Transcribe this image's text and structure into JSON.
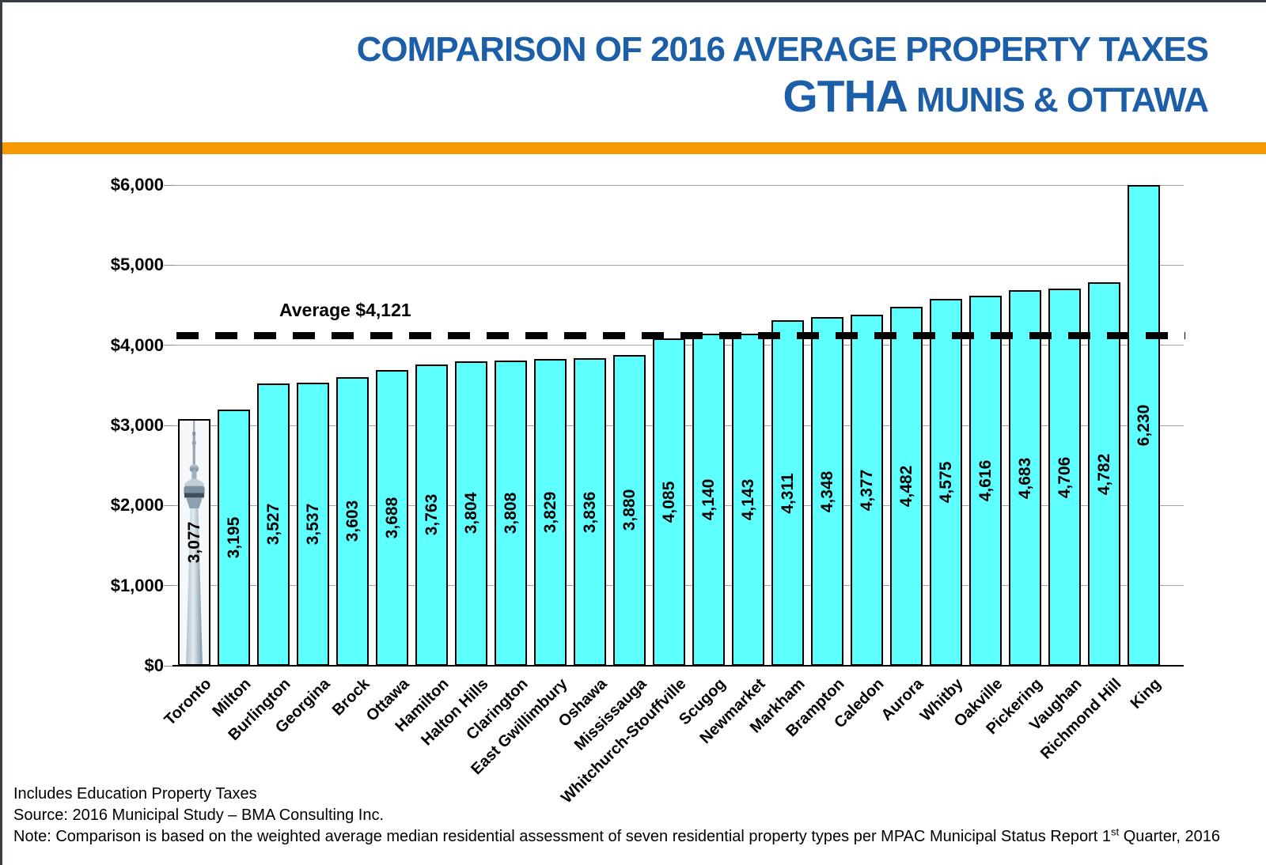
{
  "header": {
    "title_line1": "COMPARISON OF 2016 AVERAGE PROPERTY TAXES",
    "title_line2_big": "GTHA",
    "title_line2_rest": " MUNIS & OTTAWA",
    "title_color": "#1c5fa8",
    "divider_color": "#f89800"
  },
  "chart_data": {
    "type": "bar",
    "title": "Comparison of 2016 Average Property Taxes - GTHA Munis & Ottawa",
    "categories": [
      "Toronto",
      "Milton",
      "Burlington",
      "Georgina",
      "Brock",
      "Ottawa",
      "Hamilton",
      "Halton Hills",
      "Clarington",
      "East Gwillimbury",
      "Oshawa",
      "Mississauga",
      "Whitchurch-Stouffville",
      "Scugog",
      "Newmarket",
      "Markham",
      "Brampton",
      "Caledon",
      "Aurora",
      "Whitby",
      "Oakville",
      "Pickering",
      "Vaughan",
      "Richmond Hill",
      "King"
    ],
    "values": [
      3077,
      3195,
      3527,
      3537,
      3603,
      3688,
      3763,
      3804,
      3808,
      3829,
      3836,
      3880,
      4085,
      4140,
      4143,
      4311,
      4348,
      4377,
      4482,
      4575,
      4616,
      4683,
      4706,
      4782,
      6230
    ],
    "value_labels": [
      "3,077",
      "3,195",
      "3,527",
      "3,537",
      "3,603",
      "3,688",
      "3,763",
      "3,804",
      "3,808",
      "3,829",
      "3,836",
      "3,880",
      "4,085",
      "4,140",
      "4,143",
      "4,311",
      "4,348",
      "4,377",
      "4,482",
      "4,575",
      "4,616",
      "4,683",
      "4,706",
      "4,782",
      "6,230"
    ],
    "ylim": [
      0,
      6000
    ],
    "ytick_interval": 1000,
    "ytick_labels": [
      "$0",
      "$1,000",
      "$2,000",
      "$3,000",
      "$4,000",
      "$5,000",
      "$6,000"
    ],
    "grid": true,
    "legend": "none",
    "bar_color": "#5effff",
    "bar_border_color": "#000000",
    "average_line": {
      "value": 4121,
      "label": "Average $4,121",
      "style": "thick black dashed"
    },
    "first_bar_image": "cn-tower-photo"
  },
  "footer": {
    "line1": "Includes Education Property Taxes",
    "line2": "Source: 2016 Municipal Study – BMA Consulting Inc.",
    "note_before_sup": "Note: Comparison is based on the weighted average median residential assessment of seven residential property types per MPAC Municipal Status Report 1",
    "note_sup": "st",
    "note_after_sup": " Quarter, 2016"
  }
}
